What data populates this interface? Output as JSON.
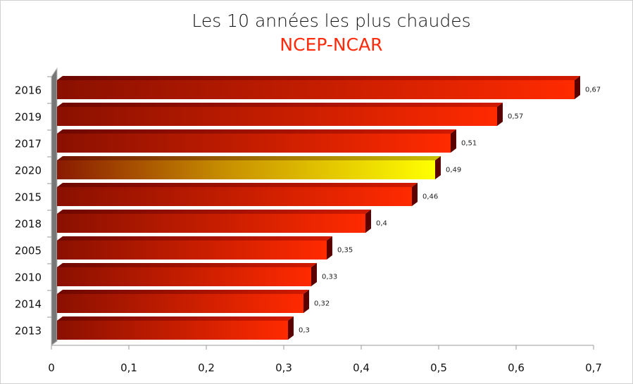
{
  "chart_data": {
    "type": "bar",
    "orientation": "horizontal",
    "style": "3d",
    "title": "Les 10 années les plus chaudes",
    "subtitle": "NCEP-NCAR",
    "categories": [
      "2016",
      "2019",
      "2017",
      "2020",
      "2015",
      "2018",
      "2005",
      "2010",
      "2014",
      "2013"
    ],
    "values": [
      0.67,
      0.57,
      0.51,
      0.49,
      0.46,
      0.4,
      0.35,
      0.33,
      0.32,
      0.3
    ],
    "data_labels": [
      "0,67",
      "0,57",
      "0,51",
      "0,49",
      "0,46",
      "0,4",
      "0,35",
      "0,33",
      "0,32",
      "0,3"
    ],
    "highlight": "2020",
    "xlim": [
      0,
      0.7
    ],
    "x_ticks": [
      0,
      0.1,
      0.2,
      0.3,
      0.4,
      0.5,
      0.6,
      0.7
    ],
    "x_tick_labels": [
      "0",
      "0,1",
      "0,2",
      "0,3",
      "0,4",
      "0,5",
      "0,6",
      "0,7"
    ],
    "xlabel": "",
    "ylabel": "",
    "grid": false,
    "legend": "none",
    "colors": {
      "bar_start": "#8a1000",
      "bar_end": "#ff2a00",
      "highlight_start": "#8a1a00",
      "highlight_end": "#ffff00",
      "subtitle": "#ff2a0a"
    }
  }
}
